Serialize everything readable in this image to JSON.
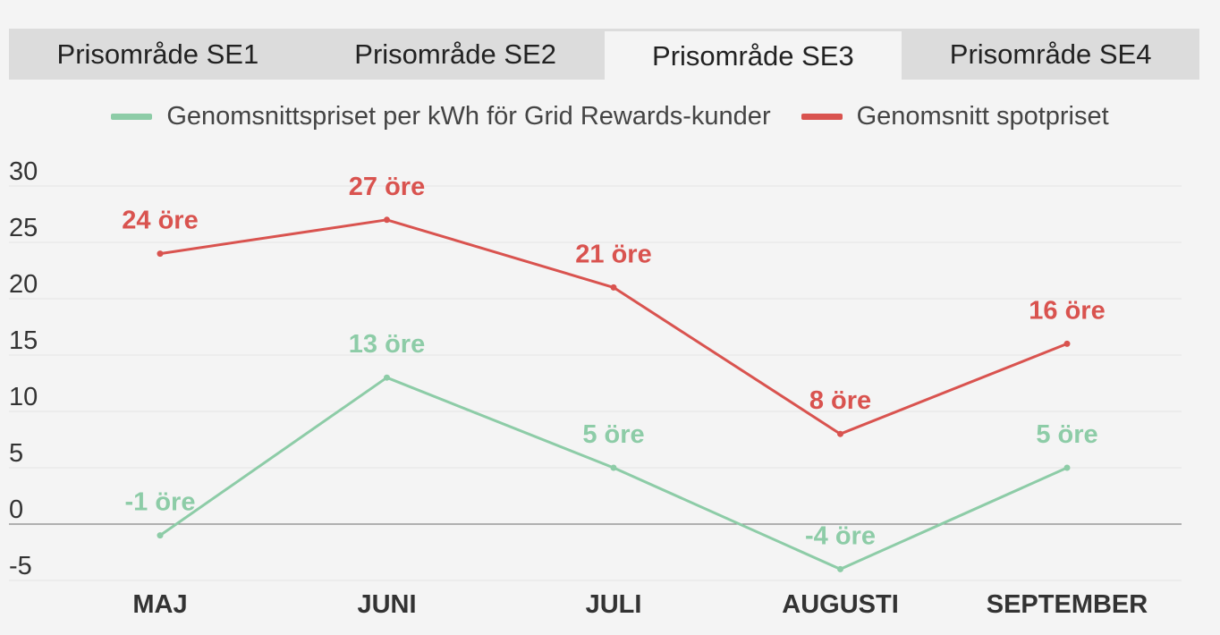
{
  "tabs": [
    {
      "label": "Prisområde SE1",
      "active": false
    },
    {
      "label": "Prisområde SE2",
      "active": false
    },
    {
      "label": "Prisområde SE3",
      "active": true
    },
    {
      "label": "Prisområde SE4",
      "active": false
    }
  ],
  "colors": {
    "grid_rewards": "#8dcca7",
    "spot": "#d9534f",
    "axis_text": "#333333",
    "grid": "#e4e4e4",
    "zero_line": "#888888"
  },
  "chart_data": {
    "type": "line",
    "categories": [
      "MAJ",
      "JUNI",
      "JULI",
      "AUGUSTI",
      "SEPTEMBER"
    ],
    "ylim": [
      -5,
      30
    ],
    "yticks": [
      30,
      25,
      20,
      15,
      10,
      5,
      0,
      -5
    ],
    "legend_position": "top-center",
    "grid": true,
    "series": [
      {
        "name": "Genomsnittspriset per kWh för Grid Rewards-kunder",
        "color": "#8dcca7",
        "values": [
          -1,
          13,
          5,
          -4,
          5
        ],
        "labels": [
          "-1 öre",
          "13 öre",
          "5 öre",
          "-4 öre",
          "5 öre"
        ]
      },
      {
        "name": "Genomsnitt spotpriset",
        "color": "#d9534f",
        "values": [
          24,
          27,
          21,
          8,
          16
        ],
        "labels": [
          "24 öre",
          "27 öre",
          "21 öre",
          "8 öre",
          "16 öre"
        ]
      }
    ]
  }
}
